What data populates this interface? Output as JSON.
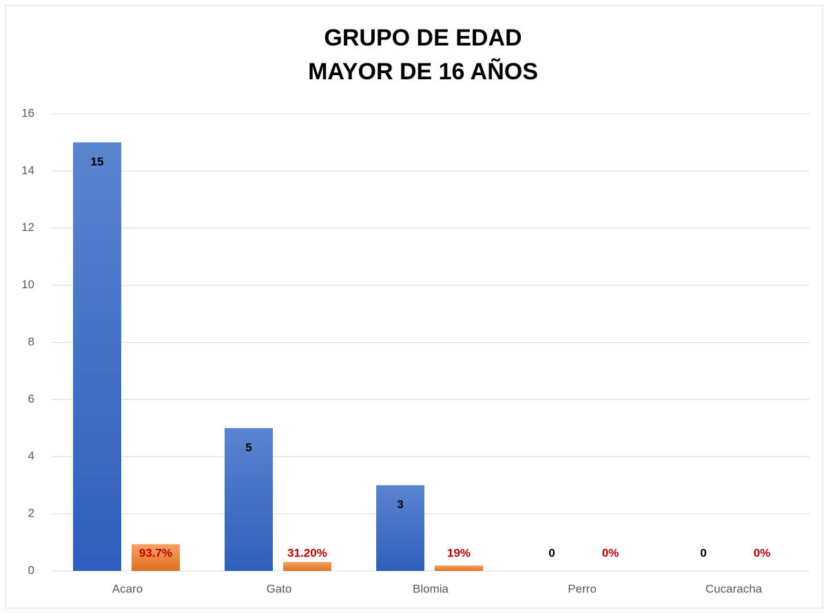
{
  "chart_data": {
    "type": "bar",
    "title": [
      "GRUPO DE EDAD",
      "MAYOR DE 16 AÑOS"
    ],
    "categories": [
      "Acaro",
      "Gato",
      "Blomia",
      "Perro",
      "Cucaracha"
    ],
    "series": [
      {
        "color": "#4472c4",
        "values": [
          15,
          5,
          3,
          0,
          0
        ]
      },
      {
        "color": "#ed7d31",
        "values": [
          0.937,
          0.312,
          0.19,
          0,
          0
        ],
        "value_labels": [
          "93.7%",
          "31.20%",
          "19%",
          "0%",
          "0%"
        ]
      }
    ],
    "ylim": [
      0,
      16
    ],
    "yticks": [
      0,
      2,
      4,
      6,
      8,
      10,
      12,
      14,
      16
    ],
    "grid": true
  }
}
